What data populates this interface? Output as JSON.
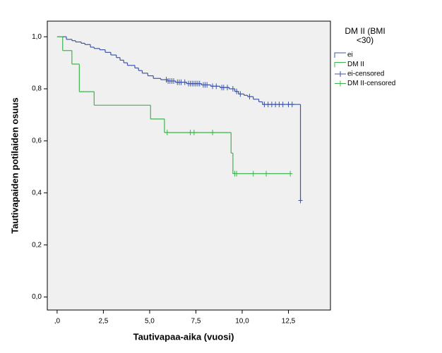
{
  "chart_data": {
    "type": "step",
    "x_label": "Tautivapaa-aika (vuosi)",
    "y_label": "Tautivapaiden potilaiden osuus",
    "legend_title": [
      "DM II (BMI",
      "<30)"
    ],
    "legend": "right",
    "background": "#f0f0f0",
    "xlim": [
      -0.53,
      14.77
    ],
    "ylim": [
      -0.05,
      1.06
    ],
    "xticks": [
      {
        "value": 0,
        "label": ",0"
      },
      {
        "value": 2.5,
        "label": "2,5"
      },
      {
        "value": 5,
        "label": "5,0"
      },
      {
        "value": 7.5,
        "label": "7,5"
      },
      {
        "value": 10,
        "label": "10,0"
      },
      {
        "value": 12.5,
        "label": "12,5"
      }
    ],
    "yticks": [
      {
        "value": 0,
        "label": "0,0"
      },
      {
        "value": 0.2,
        "label": "0,2"
      },
      {
        "value": 0.4,
        "label": "0,4"
      },
      {
        "value": 0.6,
        "label": "0,6"
      },
      {
        "value": 0.8,
        "label": "0,8"
      },
      {
        "value": 1,
        "label": "1,0"
      }
    ],
    "series": [
      {
        "name": "ei",
        "color": "#3e55a8",
        "marker": "step",
        "x": [
          0,
          0.5,
          0.8,
          1.0,
          1.3,
          1.5,
          1.8,
          2.0,
          2.3,
          2.6,
          2.9,
          3.2,
          3.4,
          3.6,
          3.8,
          4.2,
          4.4,
          4.6,
          4.9,
          5.2,
          5.6,
          6.0,
          6.4,
          7.0,
          7.8,
          8.3,
          8.8,
          9.3,
          9.6,
          9.8,
          10.1,
          10.3,
          10.6,
          10.9,
          11.1,
          13.15
        ],
        "values": [
          1.0,
          0.99,
          0.985,
          0.98,
          0.975,
          0.97,
          0.96,
          0.955,
          0.95,
          0.94,
          0.93,
          0.92,
          0.91,
          0.9,
          0.89,
          0.88,
          0.87,
          0.86,
          0.85,
          0.84,
          0.835,
          0.83,
          0.825,
          0.82,
          0.815,
          0.81,
          0.805,
          0.8,
          0.79,
          0.78,
          0.775,
          0.77,
          0.76,
          0.75,
          0.74,
          0.371
        ]
      },
      {
        "name": "DM II",
        "color": "#3bb54a",
        "marker": "step",
        "x": [
          0,
          0.3,
          0.8,
          1.2,
          2.0,
          5.05,
          5.8,
          9.4,
          9.5,
          12.6
        ],
        "values": [
          1.0,
          0.947,
          0.895,
          0.789,
          0.737,
          0.684,
          0.632,
          0.553,
          0.474,
          0.474
        ]
      },
      {
        "name": "ei-censored",
        "color": "#3e55a8",
        "marker": "plus",
        "x": [
          5.9,
          6.0,
          6.1,
          6.2,
          6.3,
          6.5,
          6.6,
          6.7,
          6.9,
          7.1,
          7.2,
          7.3,
          7.4,
          7.5,
          7.6,
          7.7,
          7.9,
          8.0,
          8.1,
          8.4,
          8.6,
          8.9,
          9.0,
          9.2,
          9.5,
          9.7,
          9.9,
          10.4,
          11.2,
          11.4,
          11.6,
          11.8,
          12.0,
          12.2,
          12.5,
          12.7,
          13.15
        ],
        "values": [
          0.835,
          0.83,
          0.83,
          0.83,
          0.83,
          0.825,
          0.825,
          0.825,
          0.825,
          0.82,
          0.82,
          0.82,
          0.82,
          0.82,
          0.82,
          0.82,
          0.815,
          0.815,
          0.815,
          0.81,
          0.81,
          0.805,
          0.805,
          0.805,
          0.8,
          0.79,
          0.78,
          0.77,
          0.74,
          0.74,
          0.74,
          0.74,
          0.74,
          0.74,
          0.74,
          0.74,
          0.371
        ]
      },
      {
        "name": "DM II-censored",
        "color": "#3bb54a",
        "marker": "plus",
        "x": [
          5.95,
          7.2,
          7.4,
          8.4,
          9.6,
          9.7,
          10.6,
          11.3,
          12.6
        ],
        "values": [
          0.632,
          0.632,
          0.632,
          0.632,
          0.474,
          0.474,
          0.474,
          0.474,
          0.474
        ]
      }
    ]
  }
}
